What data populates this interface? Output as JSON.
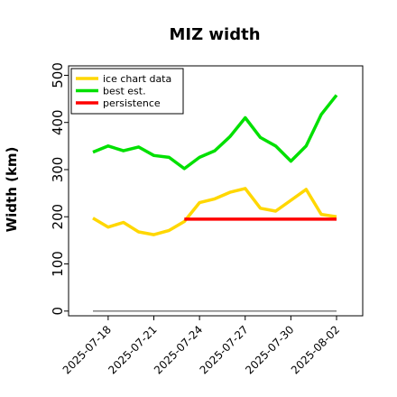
{
  "chart_data": {
    "type": "line",
    "title": "MIZ width",
    "xlabel": "",
    "ylabel": "Width (km)",
    "ylim": [
      -10,
      520
    ],
    "yticks": [
      0,
      100,
      200,
      300,
      400,
      500
    ],
    "x": [
      "2025-07-17",
      "2025-07-18",
      "2025-07-19",
      "2025-07-20",
      "2025-07-21",
      "2025-07-22",
      "2025-07-23",
      "2025-07-24",
      "2025-07-25",
      "2025-07-26",
      "2025-07-27",
      "2025-07-28",
      "2025-07-29",
      "2025-07-30",
      "2025-07-31",
      "2025-08-01",
      "2025-08-02"
    ],
    "xtick_labels": [
      "2025-07-18",
      "2025-07-21",
      "2025-07-24",
      "2025-07-27",
      "2025-07-30",
      "2025-08-02"
    ],
    "legend_position": "upper left",
    "grid": false,
    "series": [
      {
        "name": "ice chart data",
        "color": "#FFD700",
        "values": [
          197,
          178,
          188,
          168,
          162,
          171,
          190,
          230,
          238,
          252,
          260,
          218,
          212,
          235,
          258,
          205,
          200
        ]
      },
      {
        "name": "best est.",
        "color": "#00E000",
        "values": [
          337,
          350,
          340,
          348,
          330,
          326,
          302,
          326,
          340,
          370,
          410,
          368,
          350,
          318,
          350,
          417,
          458
        ]
      },
      {
        "name": "persistence",
        "color": "#FF0000",
        "values": [
          null,
          null,
          null,
          null,
          null,
          null,
          195,
          195,
          195,
          195,
          195,
          195,
          195,
          195,
          195,
          195,
          195
        ]
      }
    ],
    "baseline": {
      "value": 0,
      "color": "#808080"
    }
  }
}
